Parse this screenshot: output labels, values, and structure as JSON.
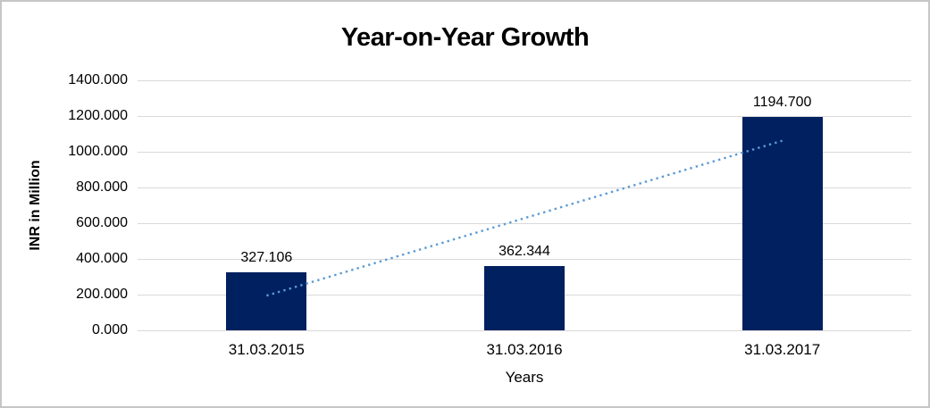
{
  "window": {
    "background": "#ffffff",
    "border_color": "#c6c6c6"
  },
  "chart_data": {
    "type": "bar",
    "title": "Year-on-Year Growth",
    "xlabel": "Years",
    "ylabel": "INR in Million",
    "categories": [
      "31.03.2015",
      "31.03.2016",
      "31.03.2017"
    ],
    "values": [
      327.106,
      362.344,
      1194.7
    ],
    "data_labels": [
      "327.106",
      "362.344",
      "1194.700"
    ],
    "ylim": [
      0,
      1400
    ],
    "ytick_step": 200,
    "ytick_labels": [
      "0.000",
      "200.000",
      "400.000",
      "600.000",
      "800.000",
      "1000.000",
      "1200.000",
      "1400.000"
    ],
    "grid": true,
    "legend": "none",
    "bar_color": "#002060",
    "gridline_color": "#d9d9d9",
    "text_color": "#000000",
    "trendline": {
      "type": "linear",
      "style": "dotted",
      "color": "#5b9bd5",
      "start_value": 194.3,
      "end_value": 1061.8
    }
  }
}
